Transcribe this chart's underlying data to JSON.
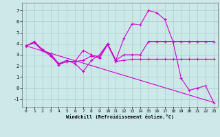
{
  "xlabel": "Windchill (Refroidissement éolien,°C)",
  "bg_color": "#cce8e8",
  "grid_color": "#aacccc",
  "line_color": "#cc00cc",
  "xlim": [
    -0.5,
    23.5
  ],
  "ylim": [
    -1.7,
    7.7
  ],
  "xticks": [
    0,
    1,
    2,
    3,
    4,
    5,
    6,
    7,
    8,
    9,
    10,
    11,
    12,
    13,
    14,
    15,
    16,
    17,
    18,
    19,
    20,
    21,
    22,
    23
  ],
  "yticks": [
    -1,
    0,
    1,
    2,
    3,
    4,
    5,
    6,
    7
  ],
  "line1_x": [
    0,
    1,
    2,
    3,
    4,
    5,
    6,
    7,
    8,
    9,
    10,
    11,
    12,
    13,
    14,
    15,
    16,
    17,
    18,
    19,
    20,
    21,
    22,
    23
  ],
  "line1_y": [
    3.8,
    4.2,
    3.5,
    3.0,
    2.2,
    2.5,
    2.2,
    1.5,
    2.5,
    3.0,
    4.0,
    2.5,
    4.5,
    5.8,
    5.7,
    7.0,
    6.8,
    6.2,
    4.2,
    0.9,
    -0.2,
    0.0,
    0.2,
    -1.3
  ],
  "line2_x": [
    0,
    1,
    2,
    3,
    4,
    5,
    6,
    7,
    8,
    9,
    10,
    11,
    12,
    13,
    14,
    15,
    16,
    17,
    18,
    19,
    20,
    21,
    22,
    23
  ],
  "line2_y": [
    3.8,
    4.1,
    3.4,
    2.9,
    2.1,
    2.4,
    2.4,
    2.5,
    2.9,
    2.7,
    3.9,
    2.4,
    2.5,
    2.6,
    2.6,
    2.6,
    2.6,
    2.6,
    2.6,
    2.6,
    2.6,
    2.6,
    2.6,
    2.6
  ],
  "line3_x": [
    0,
    23
  ],
  "line3_y": [
    3.8,
    -1.3
  ],
  "line4_x": [
    0,
    1,
    2,
    3,
    4,
    5,
    6,
    7,
    8,
    9,
    10,
    11,
    12,
    13,
    14,
    15,
    16,
    17,
    18,
    19,
    20,
    21,
    22,
    23
  ],
  "line4_y": [
    3.8,
    4.1,
    3.4,
    3.1,
    2.2,
    2.4,
    2.4,
    3.4,
    3.0,
    2.8,
    4.0,
    2.5,
    3.0,
    3.0,
    3.0,
    4.2,
    4.2,
    4.2,
    4.2,
    4.2,
    4.2,
    4.2,
    4.2,
    4.2
  ]
}
